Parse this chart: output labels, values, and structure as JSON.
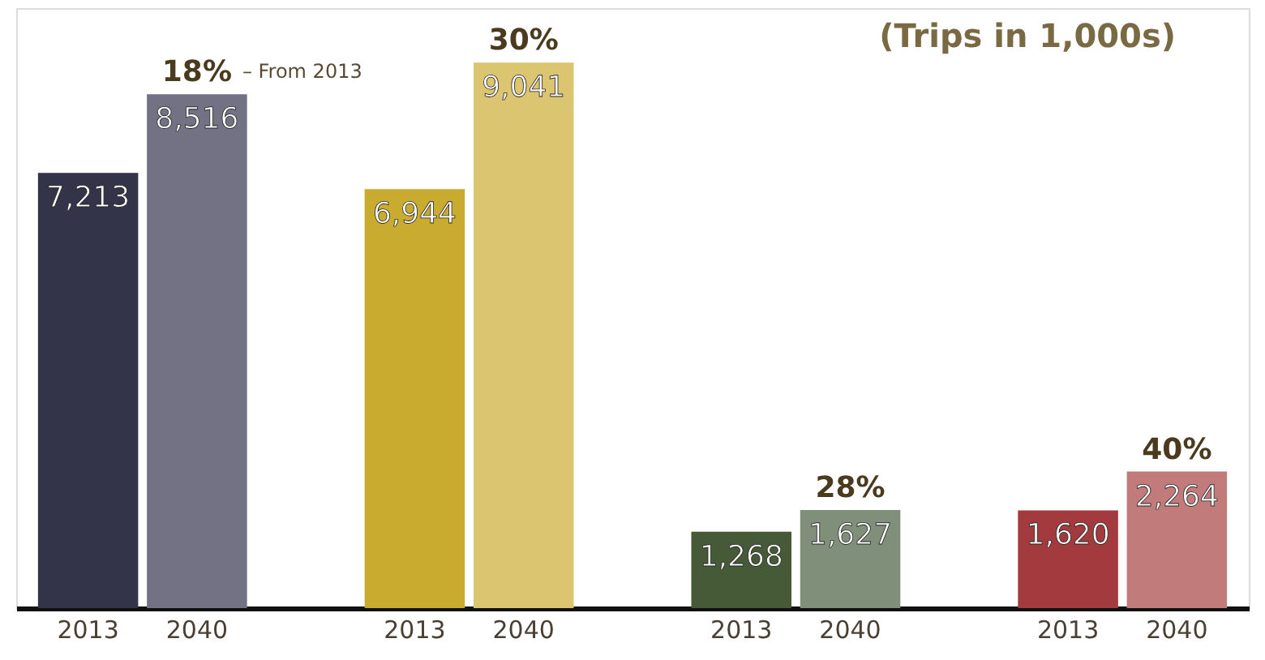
{
  "chart_data": {
    "type": "bar",
    "categories": [
      "2013",
      "2040",
      "2013",
      "2040",
      "2013",
      "2040",
      "2013",
      "2040"
    ],
    "values": [
      7213,
      8516,
      6944,
      9041,
      1268,
      1627,
      1620,
      2264
    ],
    "colors": [
      "#33334a",
      "#727284",
      "#c9ab2f",
      "#dcc570",
      "#465a37",
      "#808f79",
      "#a33a3e",
      "#c27b7b"
    ],
    "value_labels": [
      "7,213",
      "8,516",
      "6,944",
      "9,041",
      "1,268",
      "1,627",
      "1,620",
      "2,264"
    ],
    "annotations": [
      "(Trips in 1,000s)",
      "– From 2013",
      "18%",
      "30%",
      "28%",
      "40%"
    ],
    "grid": false,
    "legend": false,
    "tick_labels": "x"
  }
}
